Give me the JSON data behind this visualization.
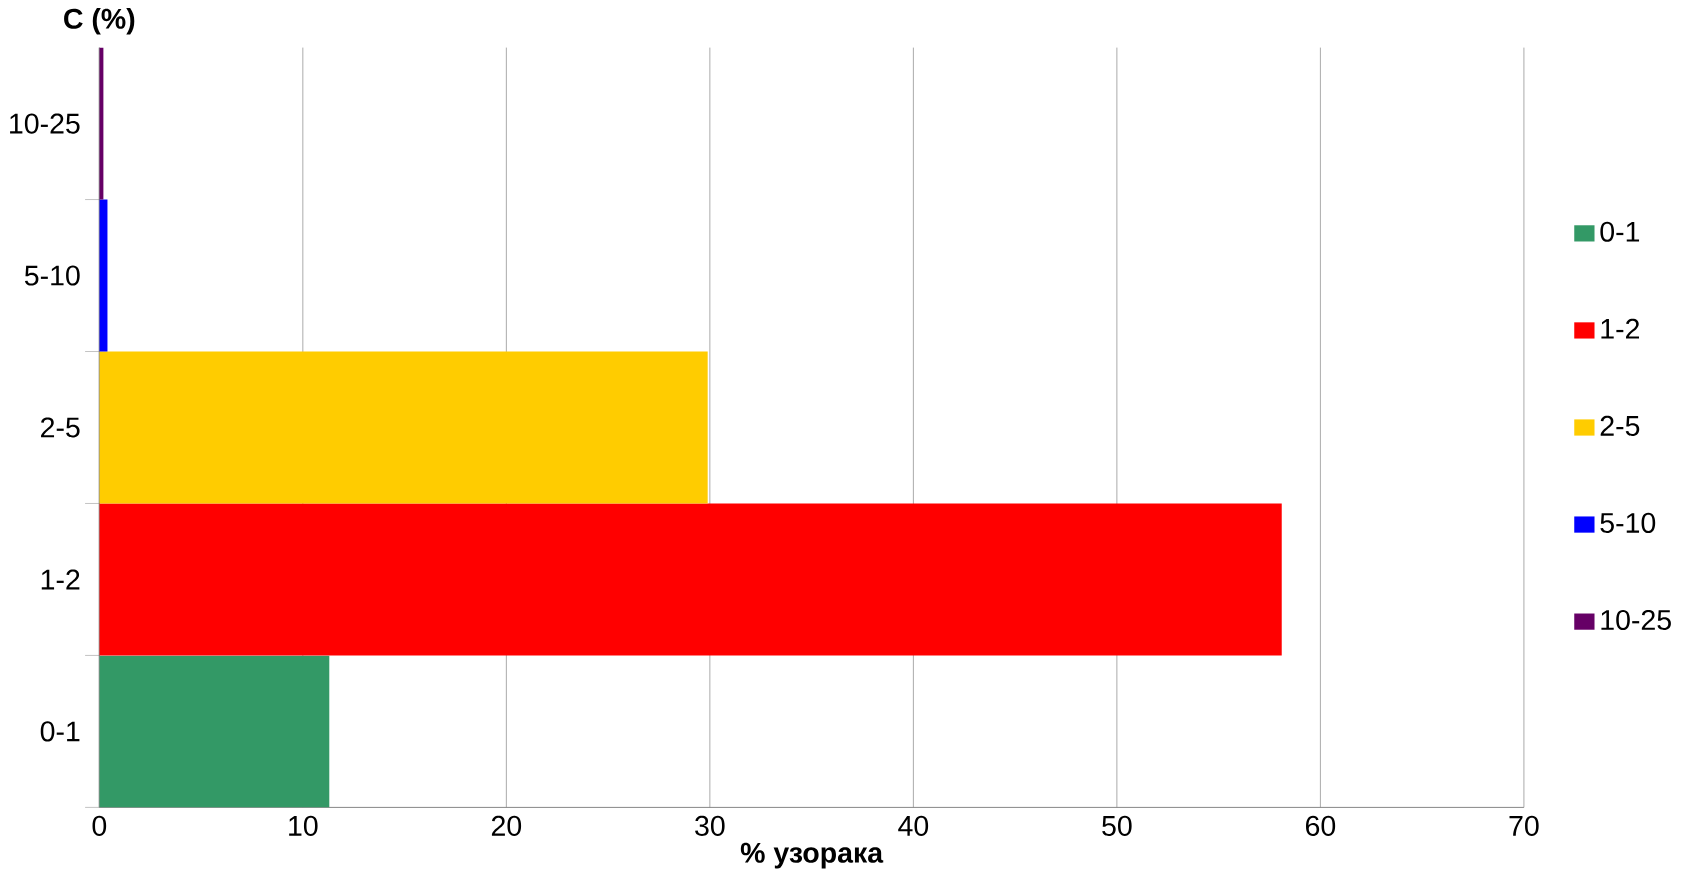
{
  "chart_data": {
    "type": "bar",
    "orientation": "horizontal",
    "ylabel": "C (%)",
    "xlabel": "% узорака",
    "categories": [
      "10-25",
      "5-10",
      "2-5",
      "1-2",
      "0-1"
    ],
    "series": [
      {
        "name": "0-1",
        "color": "#339966",
        "values": [
          null,
          null,
          null,
          null,
          11.3
        ]
      },
      {
        "name": "1-2",
        "color": "#ff0000",
        "values": [
          null,
          null,
          null,
          58.1,
          null
        ]
      },
      {
        "name": "2-5",
        "color": "#ffcc00",
        "values": [
          null,
          null,
          29.9,
          null,
          null
        ]
      },
      {
        "name": "5-10",
        "color": "#0000ff",
        "values": [
          null,
          0.4,
          null,
          null,
          null
        ]
      },
      {
        "name": "10-25",
        "color": "#660066",
        "values": [
          0.2,
          null,
          null,
          null,
          null
        ]
      }
    ],
    "xlim": [
      0,
      70
    ],
    "xticks": [
      0,
      10,
      20,
      30,
      40,
      50,
      60,
      70
    ],
    "grid": "x",
    "legend": "right"
  }
}
